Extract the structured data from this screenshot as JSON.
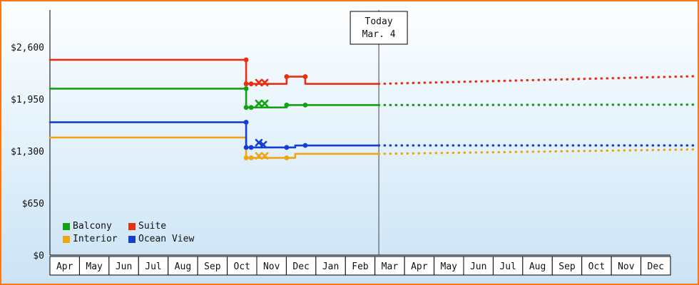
{
  "chart_data": {
    "type": "line",
    "title": "",
    "grid": false,
    "legend_position": "bottom-left",
    "y_axis": {
      "tick_values": [
        0,
        650,
        1300,
        1950,
        2600
      ],
      "tick_labels": [
        "$0",
        "$650",
        "$1,300",
        "$1,950",
        "$2,600"
      ],
      "range": [
        0,
        3060
      ]
    },
    "x_axis": {
      "months": [
        "Apr",
        "May",
        "Jun",
        "Jul",
        "Aug",
        "Sep",
        "Oct",
        "Nov",
        "Dec",
        "Jan",
        "Feb",
        "Mar",
        "Apr",
        "May",
        "Jun",
        "Jul",
        "Aug",
        "Sep",
        "Oct",
        "Nov",
        "Dec"
      ]
    },
    "today": {
      "label_line1": "Today",
      "label_line2": "Mar. 4",
      "month_position": 11.13
    },
    "series": [
      {
        "name": "Balcony",
        "color": "#12a112",
        "points_month_value": [
          [
            0,
            2080
          ],
          [
            6.64,
            2080
          ],
          [
            6.64,
            1845
          ],
          [
            8.01,
            1845
          ],
          [
            8.01,
            1875
          ],
          [
            11.13,
            1875
          ]
        ],
        "dots": [
          [
            6.64,
            2080
          ],
          [
            6.64,
            1845
          ],
          [
            6.81,
            1845
          ],
          [
            8.01,
            1875
          ],
          [
            8.64,
            1875
          ]
        ],
        "x_markers": [
          [
            7.07,
            1895
          ],
          [
            7.27,
            1895
          ]
        ],
        "forecast_dotted": [
          [
            11.13,
            1875
          ],
          [
            21.8,
            1880
          ]
        ]
      },
      {
        "name": "Suite",
        "color": "#e83010",
        "points_month_value": [
          [
            0,
            2440
          ],
          [
            6.64,
            2440
          ],
          [
            6.64,
            2140
          ],
          [
            8.01,
            2140
          ],
          [
            8.01,
            2230
          ],
          [
            8.64,
            2230
          ],
          [
            8.64,
            2140
          ],
          [
            11.13,
            2140
          ]
        ],
        "dots": [
          [
            6.64,
            2440
          ],
          [
            6.64,
            2140
          ],
          [
            6.81,
            2140
          ],
          [
            8.01,
            2230
          ],
          [
            8.64,
            2230
          ]
        ],
        "x_markers": [
          [
            7.07,
            2155
          ],
          [
            7.27,
            2155
          ]
        ],
        "forecast_dotted": [
          [
            11.13,
            2140
          ],
          [
            21.8,
            2235
          ]
        ]
      },
      {
        "name": "Interior",
        "color": "#f2a413",
        "points_month_value": [
          [
            0,
            1470
          ],
          [
            6.64,
            1470
          ],
          [
            6.64,
            1215
          ],
          [
            8.3,
            1215
          ],
          [
            8.3,
            1265
          ],
          [
            11.13,
            1265
          ]
        ],
        "dots": [
          [
            6.64,
            1215
          ],
          [
            6.81,
            1215
          ],
          [
            8.01,
            1215
          ]
        ],
        "x_markers": [
          [
            7.07,
            1240
          ],
          [
            7.27,
            1240
          ]
        ],
        "forecast_dotted": [
          [
            11.13,
            1265
          ],
          [
            21.8,
            1320
          ]
        ]
      },
      {
        "name": "Ocean View",
        "color": "#1540cf",
        "points_month_value": [
          [
            0,
            1660
          ],
          [
            6.64,
            1660
          ],
          [
            6.64,
            1345
          ],
          [
            8.3,
            1345
          ],
          [
            8.3,
            1370
          ],
          [
            11.13,
            1370
          ]
        ],
        "dots": [
          [
            6.64,
            1660
          ],
          [
            6.64,
            1345
          ],
          [
            6.81,
            1345
          ],
          [
            8.01,
            1345
          ],
          [
            8.64,
            1370
          ]
        ],
        "x_markers": [
          [
            7.07,
            1405
          ],
          [
            7.22,
            1380
          ]
        ],
        "forecast_dotted": [
          [
            11.13,
            1370
          ],
          [
            21.8,
            1370
          ]
        ]
      }
    ]
  }
}
